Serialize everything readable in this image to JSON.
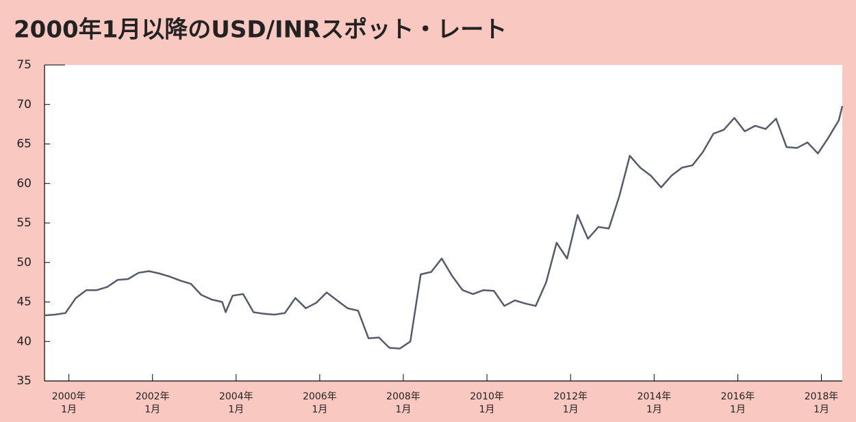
{
  "chart_data": {
    "type": "line",
    "title": "2000年1月以降のUSD/INRスポット・レート",
    "x": [
      "1999-06",
      "1999-09",
      "1999-12",
      "2000-03",
      "2000-06",
      "2000-09",
      "2000-12",
      "2001-03",
      "2001-06",
      "2001-09",
      "2001-12",
      "2002-03",
      "2002-06",
      "2002-09",
      "2002-12",
      "2003-03",
      "2003-06",
      "2003-09",
      "2003-10",
      "2003-12",
      "2004-03",
      "2004-06",
      "2004-09",
      "2004-12",
      "2005-03",
      "2005-06",
      "2005-09",
      "2005-12",
      "2006-03",
      "2006-06",
      "2006-09",
      "2006-12",
      "2007-03",
      "2007-06",
      "2007-09",
      "2007-12",
      "2008-03",
      "2008-06",
      "2008-09",
      "2008-12",
      "2009-03",
      "2009-06",
      "2009-09",
      "2009-12",
      "2010-03",
      "2010-06",
      "2010-09",
      "2010-12",
      "2011-03",
      "2011-06",
      "2011-09",
      "2011-12",
      "2012-03",
      "2012-06",
      "2012-09",
      "2012-12",
      "2013-03",
      "2013-06",
      "2013-09",
      "2013-12",
      "2014-03",
      "2014-06",
      "2014-09",
      "2014-12",
      "2015-03",
      "2015-06",
      "2015-09",
      "2015-12",
      "2016-03",
      "2016-06",
      "2016-09",
      "2016-12",
      "2017-03",
      "2017-06",
      "2017-09",
      "2017-12",
      "2018-03",
      "2018-06",
      "2018-07"
    ],
    "series": [
      {
        "name": "USD/INR",
        "color": "#555a6a",
        "values": [
          43.3,
          43.4,
          43.6,
          45.5,
          46.5,
          46.5,
          46.9,
          47.8,
          47.9,
          48.7,
          48.9,
          48.6,
          48.2,
          47.7,
          47.3,
          45.9,
          45.3,
          45.0,
          43.7,
          45.8,
          46.0,
          43.7,
          43.5,
          43.4,
          43.6,
          45.5,
          44.2,
          44.9,
          46.2,
          45.2,
          44.2,
          43.9,
          40.4,
          40.5,
          39.2,
          39.1,
          40.0,
          48.5,
          48.8,
          50.5,
          48.3,
          46.5,
          46.0,
          46.5,
          46.4,
          44.5,
          45.2,
          44.8,
          44.5,
          47.5,
          52.5,
          50.5,
          56.0,
          53.0,
          54.5,
          54.3,
          58.4,
          63.5,
          62.0,
          61.0,
          59.5,
          61.0,
          62.0,
          62.3,
          64.0,
          66.3,
          66.8,
          68.3,
          66.6,
          67.3,
          66.9,
          68.2,
          64.6,
          64.5,
          65.2,
          63.8,
          65.8,
          68.0,
          69.8
        ]
      }
    ],
    "xlim": [
      "1999-06",
      "2018-07"
    ],
    "xticks": [
      {
        "value": "2000-01",
        "label": [
          "2000年",
          "1月"
        ]
      },
      {
        "value": "2002-01",
        "label": [
          "2002年",
          "1月"
        ]
      },
      {
        "value": "2004-01",
        "label": [
          "2004年",
          "1月"
        ]
      },
      {
        "value": "2006-01",
        "label": [
          "2006年",
          "1月"
        ]
      },
      {
        "value": "2008-01",
        "label": [
          "2008年",
          "1月"
        ]
      },
      {
        "value": "2010-01",
        "label": [
          "2010年",
          "1月"
        ]
      },
      {
        "value": "2012-01",
        "label": [
          "2012年",
          "1月"
        ]
      },
      {
        "value": "2014-01",
        "label": [
          "2014年",
          "1月"
        ]
      },
      {
        "value": "2016-01",
        "label": [
          "2016年",
          "1月"
        ]
      },
      {
        "value": "2018-01",
        "label": [
          "2018年",
          "1月"
        ]
      }
    ],
    "ylim": [
      35,
      75
    ],
    "yticks": [
      35,
      40,
      45,
      50,
      55,
      60,
      65,
      70,
      75
    ]
  }
}
